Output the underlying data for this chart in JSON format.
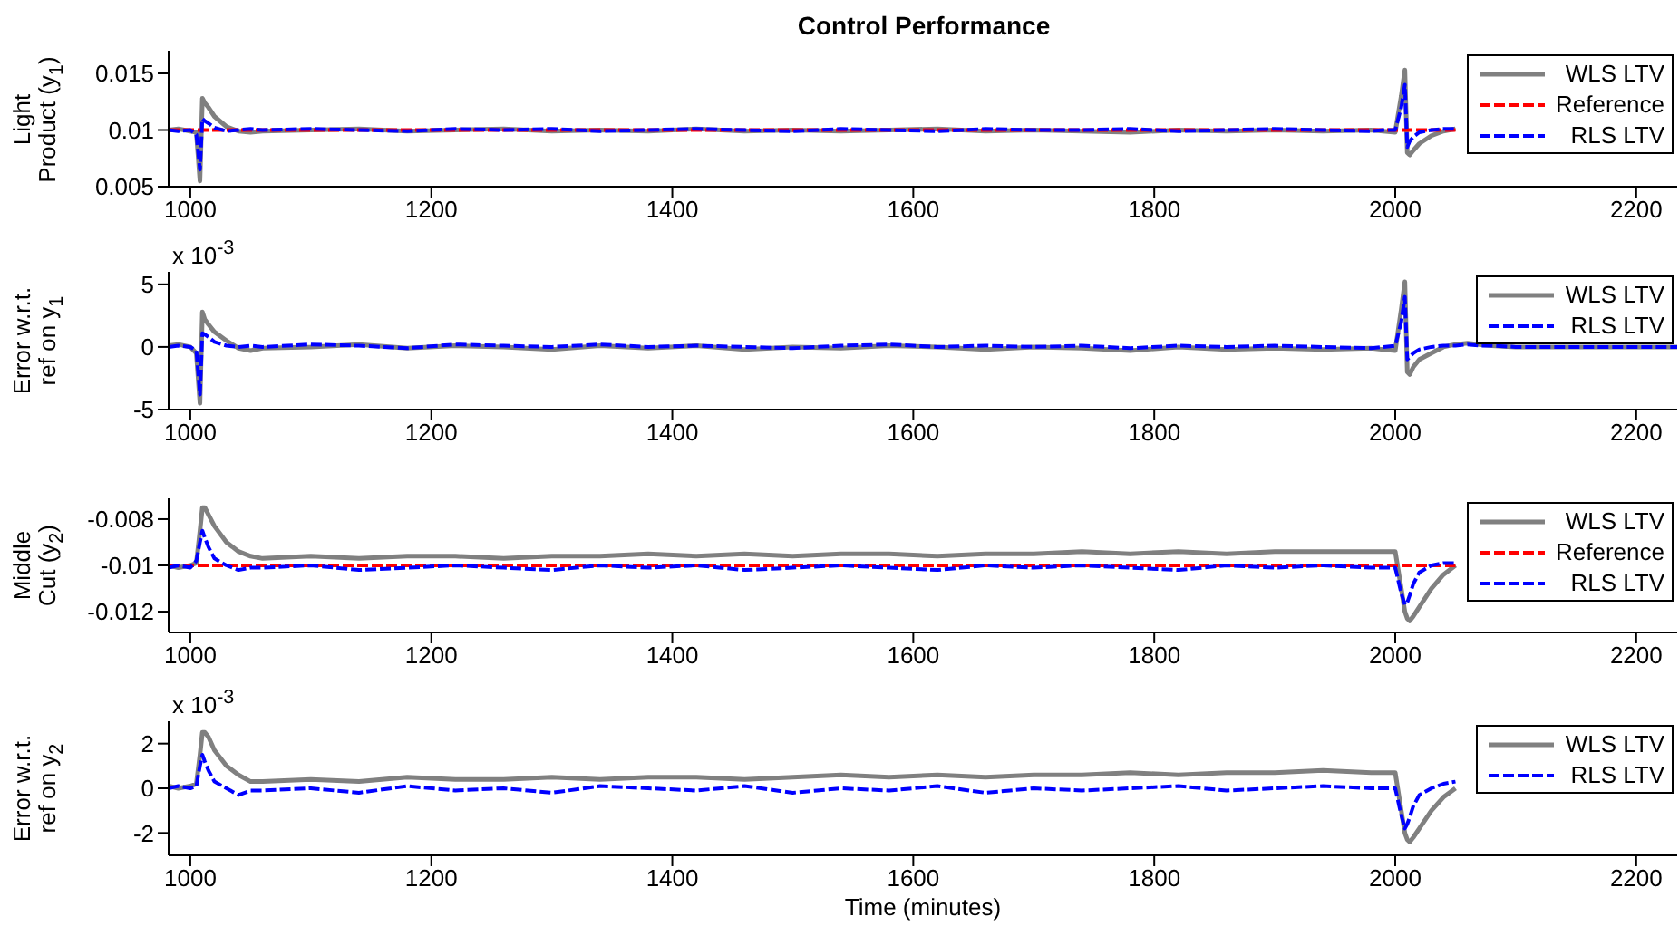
{
  "chart_data": [
    {
      "type": "line",
      "title": "Control Performance",
      "ylabel": "Light Product (y$_{1}$)",
      "legend": "top right",
      "x": [
        982,
        990,
        1000,
        1005,
        1008,
        1010,
        1012,
        1015,
        1020,
        1030,
        1040,
        1050,
        1060,
        1100,
        1140,
        1180,
        1220,
        1260,
        1300,
        1340,
        1380,
        1420,
        1460,
        1500,
        1540,
        1580,
        1620,
        1660,
        1700,
        1740,
        1780,
        1820,
        1860,
        1900,
        1940,
        1980,
        1990,
        2000,
        2005,
        2008,
        2010,
        2012,
        2015,
        2020,
        2030,
        2040,
        2050
      ],
      "xlim": [
        982,
        2234
      ],
      "xticks": [
        1000,
        1200,
        1400,
        1600,
        1800,
        2000,
        2200
      ],
      "ylim": [
        0.005,
        0.017
      ],
      "yticks": [
        0.005,
        0.01,
        0.015
      ],
      "series": [
        {
          "name": "WLS LTV",
          "color": "#808080",
          "line_style": "solid",
          "values": [
            0.01,
            0.0101,
            0.0099,
            0.0098,
            0.0055,
            0.0128,
            0.0124,
            0.012,
            0.0112,
            0.0103,
            0.0099,
            0.0098,
            0.0099,
            0.01,
            0.0101,
            0.0099,
            0.01,
            0.0101,
            0.0099,
            0.01,
            0.0099,
            0.0101,
            0.0099,
            0.01,
            0.0099,
            0.01,
            0.0101,
            0.0099,
            0.01,
            0.0099,
            0.0098,
            0.01,
            0.0099,
            0.01,
            0.0099,
            0.01,
            0.0099,
            0.0098,
            0.013,
            0.0153,
            0.008,
            0.0078,
            0.0082,
            0.0088,
            0.0095,
            0.0099,
            0.0101
          ]
        },
        {
          "name": "Reference",
          "color": "#ff0000",
          "line_style": "dashed",
          "values": [
            0.01,
            0.01,
            0.01,
            0.01,
            0.01,
            0.01,
            0.01,
            0.01,
            0.01,
            0.01,
            0.01,
            0.01,
            0.01,
            0.01,
            0.01,
            0.01,
            0.01,
            0.01,
            0.01,
            0.01,
            0.01,
            0.01,
            0.01,
            0.01,
            0.01,
            0.01,
            0.01,
            0.01,
            0.01,
            0.01,
            0.01,
            0.01,
            0.01,
            0.01,
            0.01,
            0.01,
            0.01,
            0.01,
            0.01,
            0.01,
            0.01,
            0.01,
            0.01,
            0.01,
            0.01,
            0.01,
            0.01
          ]
        },
        {
          "name": "RLS LTV",
          "color": "#0000ff",
          "line_style": "dashed",
          "values": [
            0.01,
            0.0099,
            0.01,
            0.0096,
            0.0065,
            0.011,
            0.0108,
            0.0106,
            0.0102,
            0.0099,
            0.01,
            0.0101,
            0.01,
            0.0101,
            0.01,
            0.0099,
            0.0101,
            0.01,
            0.0101,
            0.0099,
            0.01,
            0.0101,
            0.01,
            0.0099,
            0.0101,
            0.01,
            0.0099,
            0.0101,
            0.01,
            0.01,
            0.0101,
            0.0099,
            0.01,
            0.0101,
            0.01,
            0.0099,
            0.01,
            0.01,
            0.012,
            0.014,
            0.0085,
            0.009,
            0.0094,
            0.0098,
            0.01,
            0.0101,
            0.0101
          ]
        }
      ]
    },
    {
      "type": "line",
      "ylabel": "Error w.r.t. ref on y$_{1}$",
      "legend": "top right",
      "annotations": [
        "x 10$^{-3}$"
      ],
      "x": [
        982,
        990,
        1000,
        1005,
        1008,
        1010,
        1012,
        1015,
        1020,
        1030,
        1040,
        1050,
        1060,
        1100,
        1140,
        1180,
        1220,
        1260,
        1300,
        1340,
        1380,
        1420,
        1460,
        1500,
        1540,
        1580,
        1620,
        1660,
        1700,
        1740,
        1780,
        1820,
        1860,
        1900,
        1940,
        1980,
        1990,
        2000,
        2005,
        2008,
        2010,
        2012,
        2015,
        2020,
        2030,
        2040,
        2050,
        2060,
        2070,
        2080,
        2100,
        2140,
        2180,
        2220,
        2234
      ],
      "xlim": [
        982,
        2234
      ],
      "xticks": [
        1000,
        1200,
        1400,
        1600,
        1800,
        2000,
        2200
      ],
      "ylim": [
        -5,
        6
      ],
      "yticks": [
        -5,
        0,
        5
      ],
      "series": [
        {
          "name": "WLS LTV",
          "color": "#808080",
          "line_style": "solid",
          "values": [
            0.1,
            0.2,
            0,
            -0.5,
            -4.5,
            2.8,
            2.2,
            1.8,
            1.2,
            0.5,
            -0.1,
            -0.3,
            -0.1,
            0,
            0.2,
            -0.1,
            0.1,
            0,
            -0.2,
            0.1,
            -0.1,
            0.1,
            -0.2,
            0,
            -0.1,
            0.1,
            0,
            -0.2,
            0,
            -0.1,
            -0.3,
            0,
            -0.2,
            -0.1,
            -0.2,
            -0.1,
            -0.2,
            -0.3,
            3,
            5.2,
            -2,
            -2.2,
            -1.6,
            -1,
            -0.5,
            0,
            0.2,
            0.3,
            0.2,
            0.1,
            0,
            0,
            0,
            0,
            0
          ]
        },
        {
          "name": "RLS LTV",
          "color": "#0000ff",
          "line_style": "dashed",
          "values": [
            0,
            0.1,
            0,
            -0.3,
            -3.8,
            1.1,
            1,
            0.8,
            0.4,
            0.1,
            0,
            0.1,
            0,
            0.2,
            0.1,
            -0.1,
            0.2,
            0.1,
            0,
            0.2,
            0,
            0.1,
            0,
            -0.1,
            0.1,
            0.2,
            0,
            0.1,
            0,
            0.1,
            -0.1,
            0.1,
            0,
            0.1,
            0,
            -0.1,
            0,
            0.1,
            2,
            4,
            -1,
            -0.8,
            -0.5,
            -0.2,
            0,
            0.1,
            0.1,
            0.2,
            0.1,
            0.1,
            0,
            0,
            0,
            0,
            0
          ]
        }
      ]
    },
    {
      "type": "line",
      "ylabel": "Middle Cut (y$_{2}$)",
      "legend": "top right",
      "x": [
        982,
        990,
        1000,
        1005,
        1008,
        1010,
        1012,
        1015,
        1020,
        1030,
        1040,
        1050,
        1060,
        1100,
        1140,
        1180,
        1220,
        1260,
        1300,
        1340,
        1380,
        1420,
        1460,
        1500,
        1540,
        1580,
        1620,
        1660,
        1700,
        1740,
        1780,
        1820,
        1860,
        1900,
        1940,
        1980,
        1990,
        2000,
        2005,
        2008,
        2010,
        2012,
        2015,
        2020,
        2030,
        2040,
        2050
      ],
      "xlim": [
        982,
        2234
      ],
      "xticks": [
        1000,
        1200,
        1400,
        1600,
        1800,
        2000,
        2200
      ],
      "ylim": [
        -0.0129,
        -0.0071
      ],
      "yticks": [
        -0.012,
        -0.01,
        -0.008
      ],
      "series": [
        {
          "name": "WLS LTV",
          "color": "#808080",
          "line_style": "solid",
          "values": [
            -0.01,
            -0.0101,
            -0.01,
            -0.0099,
            -0.0085,
            -0.0075,
            -0.0075,
            -0.0078,
            -0.0083,
            -0.009,
            -0.0094,
            -0.0096,
            -0.0097,
            -0.0096,
            -0.0097,
            -0.0096,
            -0.0096,
            -0.0097,
            -0.0096,
            -0.0096,
            -0.0095,
            -0.0096,
            -0.0095,
            -0.0096,
            -0.0095,
            -0.0095,
            -0.0096,
            -0.0095,
            -0.0095,
            -0.0094,
            -0.0095,
            -0.0094,
            -0.0095,
            -0.0094,
            -0.0094,
            -0.0094,
            -0.0094,
            -0.0094,
            -0.011,
            -0.012,
            -0.0123,
            -0.0124,
            -0.0122,
            -0.0118,
            -0.011,
            -0.0104,
            -0.01
          ]
        },
        {
          "name": "Reference",
          "color": "#ff0000",
          "line_style": "dashed",
          "values": [
            -0.01,
            -0.01,
            -0.01,
            -0.01,
            -0.01,
            -0.01,
            -0.01,
            -0.01,
            -0.01,
            -0.01,
            -0.01,
            -0.01,
            -0.01,
            -0.01,
            -0.01,
            -0.01,
            -0.01,
            -0.01,
            -0.01,
            -0.01,
            -0.01,
            -0.01,
            -0.01,
            -0.01,
            -0.01,
            -0.01,
            -0.01,
            -0.01,
            -0.01,
            -0.01,
            -0.01,
            -0.01,
            -0.01,
            -0.01,
            -0.01,
            -0.01,
            -0.01,
            -0.01,
            -0.01,
            -0.01,
            -0.01,
            -0.01,
            -0.01,
            -0.01,
            -0.01,
            -0.01,
            -0.01
          ]
        },
        {
          "name": "RLS LTV",
          "color": "#0000ff",
          "line_style": "dashed",
          "values": [
            -0.0101,
            -0.01,
            -0.0101,
            -0.0098,
            -0.009,
            -0.0085,
            -0.0088,
            -0.0092,
            -0.0097,
            -0.01,
            -0.0102,
            -0.0101,
            -0.0101,
            -0.01,
            -0.0102,
            -0.0101,
            -0.01,
            -0.0101,
            -0.0102,
            -0.01,
            -0.0101,
            -0.01,
            -0.0102,
            -0.0101,
            -0.01,
            -0.0101,
            -0.0102,
            -0.01,
            -0.0101,
            -0.01,
            -0.0101,
            -0.0102,
            -0.01,
            -0.0101,
            -0.01,
            -0.0101,
            -0.0101,
            -0.0101,
            -0.0112,
            -0.0117,
            -0.0116,
            -0.0113,
            -0.0108,
            -0.0103,
            -0.01,
            -0.0099,
            -0.0099
          ]
        }
      ]
    },
    {
      "type": "line",
      "ylabel": "Error w.r.t. ref on y$_{2}$",
      "xlabel": "Time (minutes)",
      "legend": "top right",
      "annotations": [
        "x 10$^{-3}$"
      ],
      "x": [
        982,
        990,
        1000,
        1005,
        1008,
        1010,
        1012,
        1015,
        1020,
        1030,
        1040,
        1050,
        1060,
        1100,
        1140,
        1180,
        1220,
        1260,
        1300,
        1340,
        1380,
        1420,
        1460,
        1500,
        1540,
        1580,
        1620,
        1660,
        1700,
        1740,
        1780,
        1820,
        1860,
        1900,
        1940,
        1980,
        1990,
        2000,
        2005,
        2008,
        2010,
        2012,
        2015,
        2020,
        2030,
        2040,
        2050
      ],
      "xlim": [
        982,
        2234
      ],
      "xticks": [
        1000,
        1200,
        1400,
        1600,
        1800,
        2000,
        2200
      ],
      "ylim": [
        -3,
        3
      ],
      "yticks": [
        -2,
        0,
        2
      ],
      "series": [
        {
          "name": "WLS LTV",
          "color": "#808080",
          "line_style": "solid",
          "values": [
            0.1,
            0,
            0.1,
            0.2,
            1.5,
            2.5,
            2.5,
            2.3,
            1.7,
            1,
            0.6,
            0.3,
            0.3,
            0.4,
            0.3,
            0.5,
            0.4,
            0.4,
            0.5,
            0.4,
            0.5,
            0.5,
            0.4,
            0.5,
            0.6,
            0.5,
            0.6,
            0.5,
            0.6,
            0.6,
            0.7,
            0.6,
            0.7,
            0.7,
            0.8,
            0.7,
            0.7,
            0.7,
            -1,
            -2,
            -2.3,
            -2.4,
            -2.2,
            -1.8,
            -1,
            -0.4,
            0
          ]
        },
        {
          "name": "RLS LTV",
          "color": "#0000ff",
          "line_style": "dashed",
          "values": [
            0,
            0.1,
            0,
            0.1,
            1,
            1.5,
            1.2,
            0.8,
            0.3,
            0,
            -0.3,
            -0.1,
            -0.1,
            0,
            -0.2,
            0.1,
            -0.1,
            0,
            -0.2,
            0.1,
            0,
            -0.1,
            0.1,
            -0.2,
            0,
            -0.1,
            0.1,
            -0.2,
            0,
            -0.1,
            0,
            0.1,
            -0.1,
            0,
            0.1,
            0,
            0,
            0,
            -1.2,
            -1.8,
            -1.6,
            -1.3,
            -0.8,
            -0.3,
            0,
            0.2,
            0.3
          ]
        }
      ]
    }
  ]
}
